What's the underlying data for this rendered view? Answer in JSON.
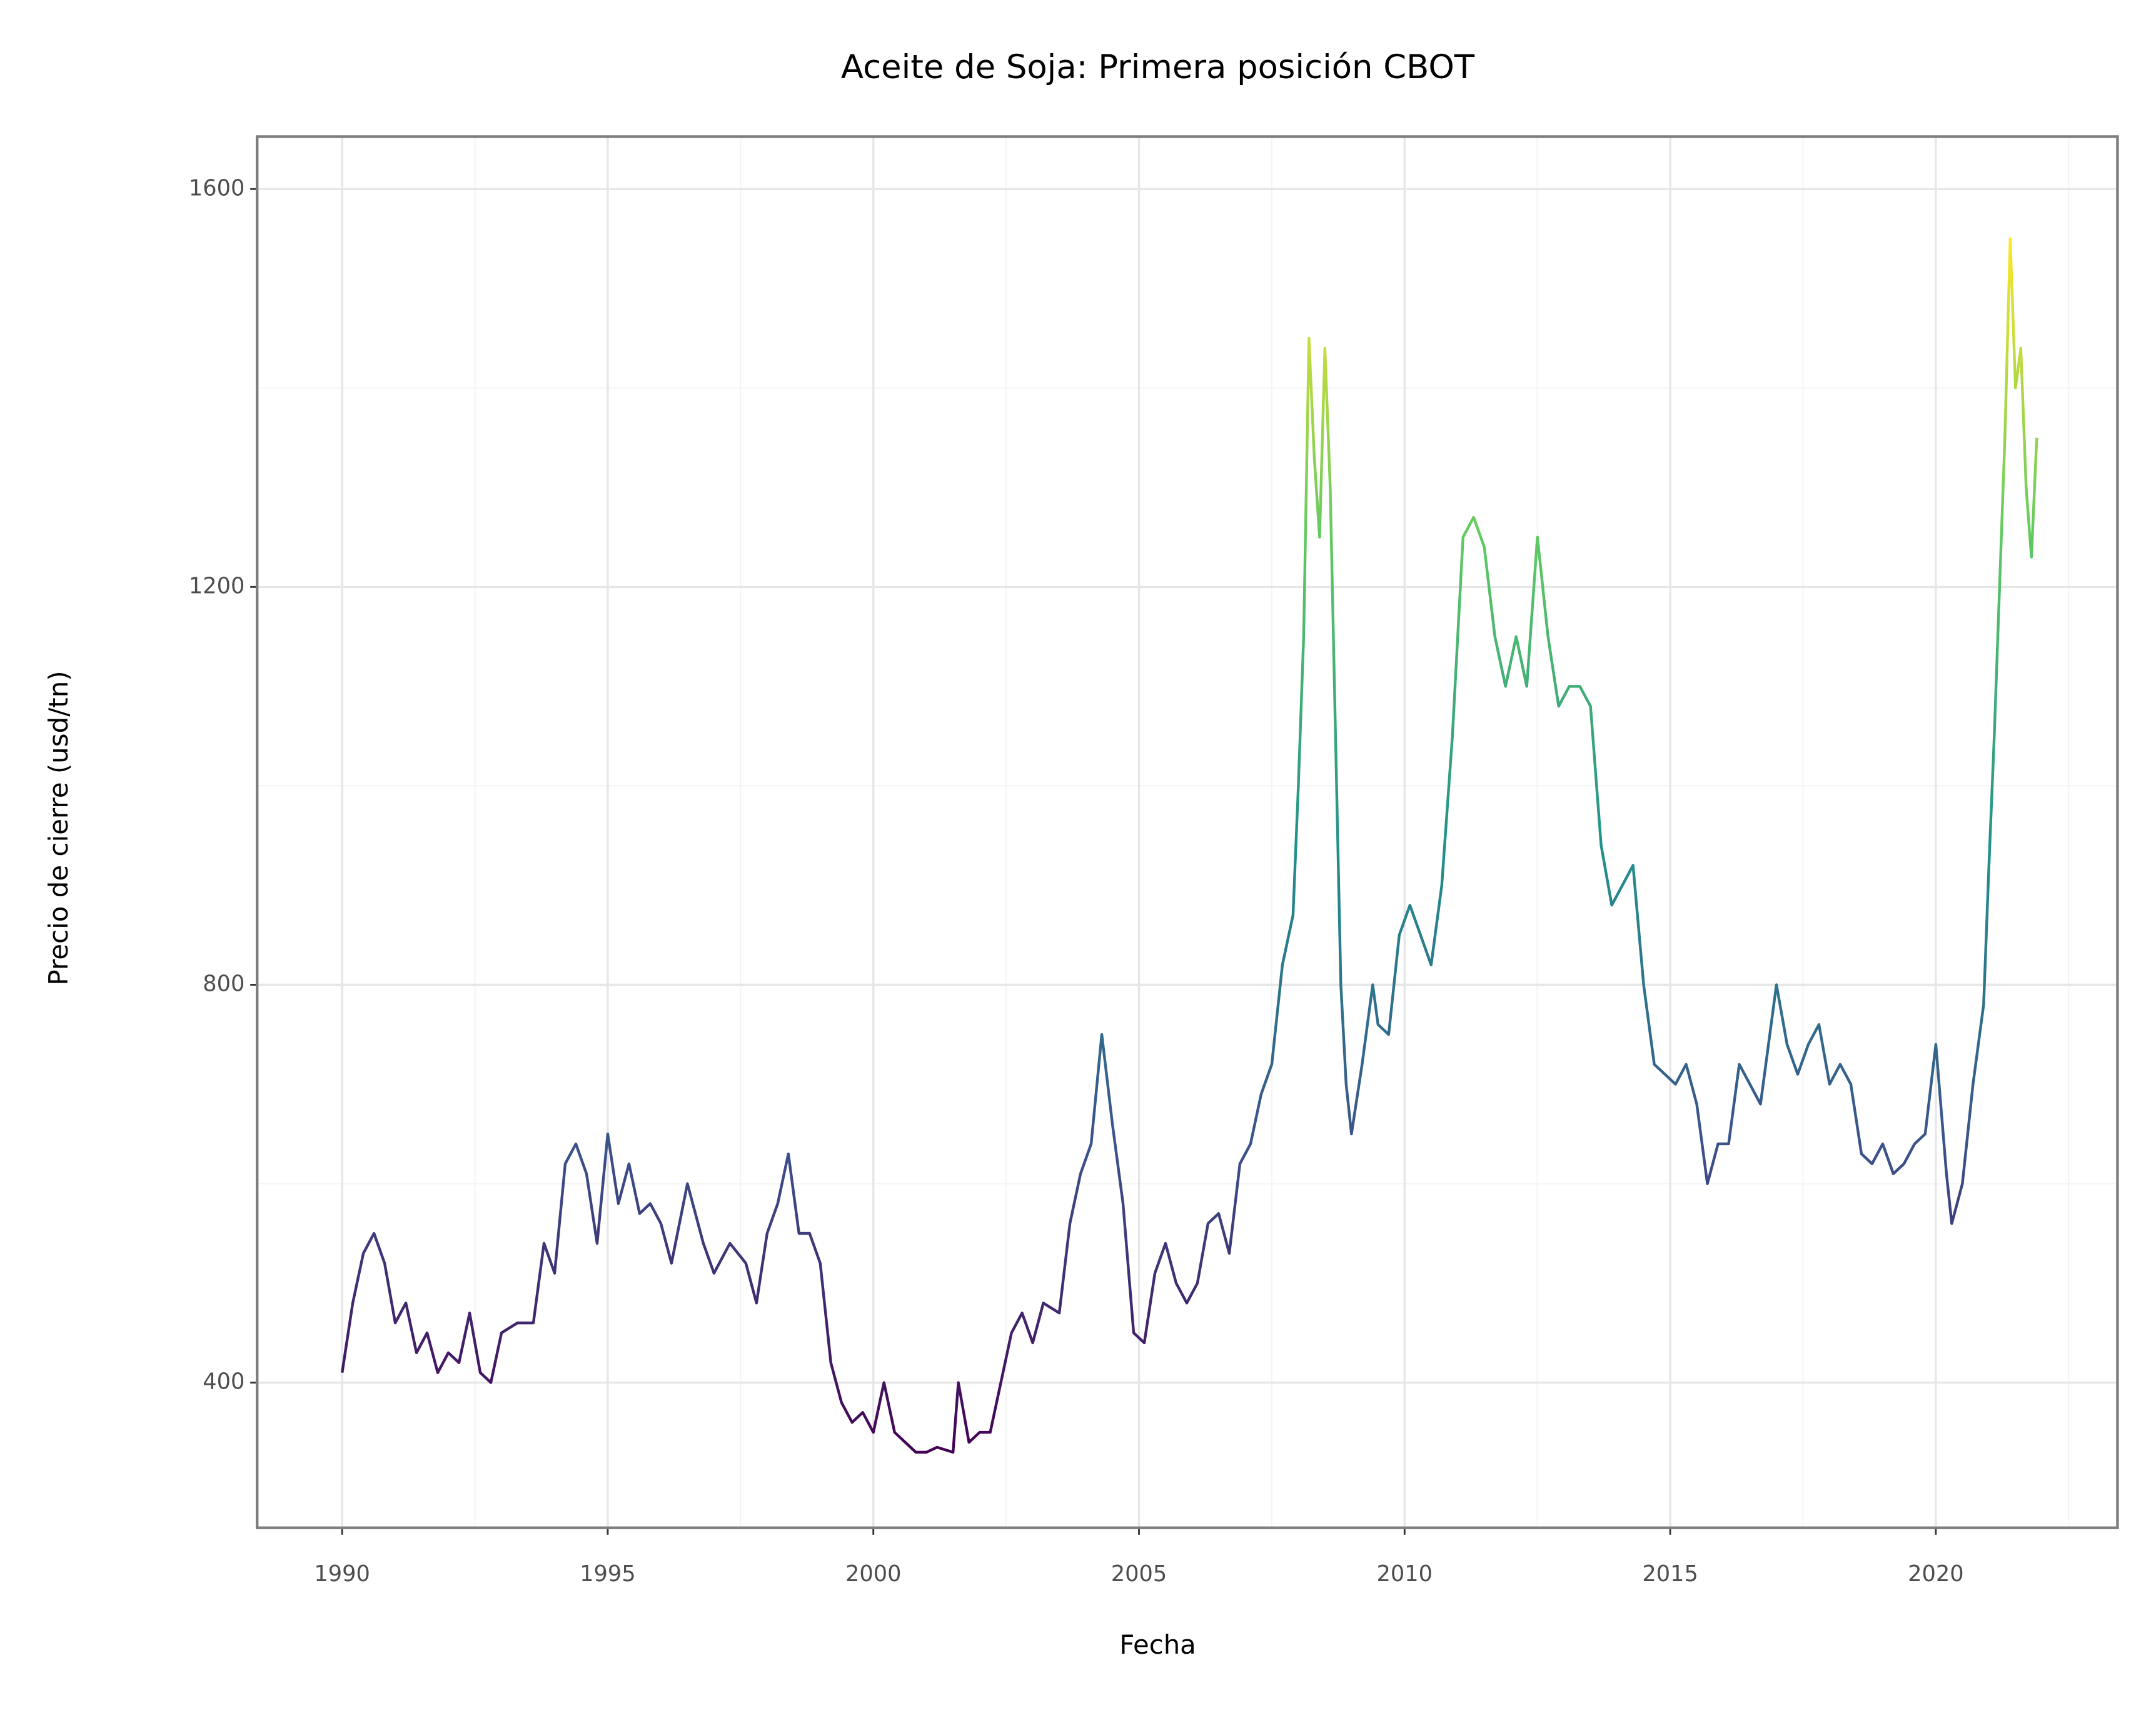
{
  "chart_data": {
    "type": "line",
    "title": "Aceite de Soja: Primera posición CBOT",
    "x_label": "Fecha",
    "y_label": "Precio de cierre (usd/tn)",
    "x": [
      1990.0,
      1990.2,
      1990.4,
      1990.6,
      1990.8,
      1991.0,
      1991.2,
      1991.4,
      1991.6,
      1991.8,
      1992.0,
      1992.2,
      1992.4,
      1992.6,
      1992.8,
      1993.0,
      1993.3,
      1993.6,
      1993.8,
      1994.0,
      1994.2,
      1994.4,
      1994.6,
      1994.8,
      1995.0,
      1995.2,
      1995.4,
      1995.6,
      1995.8,
      1996.0,
      1996.2,
      1996.5,
      1996.8,
      1997.0,
      1997.3,
      1997.6,
      1997.8,
      1998.0,
      1998.2,
      1998.4,
      1998.6,
      1998.8,
      1999.0,
      1999.2,
      1999.4,
      1999.6,
      1999.8,
      2000.0,
      2000.2,
      2000.4,
      2000.6,
      2000.8,
      2001.0,
      2001.2,
      2001.5,
      2001.6,
      2001.8,
      2002.0,
      2002.2,
      2002.4,
      2002.6,
      2002.8,
      2003.0,
      2003.2,
      2003.5,
      2003.7,
      2003.9,
      2004.1,
      2004.3,
      2004.5,
      2004.7,
      2004.9,
      2005.1,
      2005.3,
      2005.5,
      2005.7,
      2005.9,
      2006.1,
      2006.3,
      2006.5,
      2006.7,
      2006.9,
      2007.1,
      2007.3,
      2007.5,
      2007.7,
      2007.9,
      2008.0,
      2008.1,
      2008.2,
      2008.3,
      2008.4,
      2008.5,
      2008.6,
      2008.7,
      2008.8,
      2008.9,
      2009.0,
      2009.2,
      2009.4,
      2009.5,
      2009.7,
      2009.9,
      2010.1,
      2010.3,
      2010.5,
      2010.7,
      2010.9,
      2011.1,
      2011.3,
      2011.5,
      2011.7,
      2011.9,
      2012.1,
      2012.3,
      2012.5,
      2012.7,
      2012.9,
      2013.1,
      2013.3,
      2013.5,
      2013.7,
      2013.9,
      2014.1,
      2014.3,
      2014.5,
      2014.7,
      2014.9,
      2015.1,
      2015.3,
      2015.5,
      2015.7,
      2015.9,
      2016.1,
      2016.3,
      2016.5,
      2016.7,
      2016.9,
      2017.0,
      2017.2,
      2017.4,
      2017.6,
      2017.8,
      2018.0,
      2018.2,
      2018.4,
      2018.6,
      2018.8,
      2019.0,
      2019.2,
      2019.4,
      2019.6,
      2019.8,
      2020.0,
      2020.2,
      2020.3,
      2020.5,
      2020.7,
      2020.9,
      2021.0,
      2021.1,
      2021.2,
      2021.3,
      2021.4,
      2021.5,
      2021.6,
      2021.7,
      2021.8,
      2021.9
    ],
    "values": [
      410,
      480,
      530,
      550,
      520,
      460,
      480,
      430,
      450,
      410,
      430,
      420,
      470,
      410,
      400,
      450,
      460,
      460,
      540,
      510,
      620,
      640,
      610,
      540,
      650,
      580,
      620,
      570,
      580,
      560,
      520,
      600,
      540,
      510,
      540,
      520,
      480,
      550,
      580,
      630,
      550,
      550,
      520,
      420,
      380,
      360,
      370,
      350,
      400,
      350,
      340,
      330,
      330,
      335,
      330,
      400,
      340,
      350,
      350,
      400,
      450,
      470,
      440,
      480,
      470,
      560,
      610,
      640,
      750,
      660,
      580,
      450,
      440,
      510,
      540,
      500,
      480,
      500,
      560,
      570,
      530,
      620,
      640,
      690,
      720,
      820,
      870,
      1000,
      1150,
      1450,
      1330,
      1250,
      1440,
      1300,
      1050,
      800,
      700,
      650,
      720,
      800,
      760,
      750,
      850,
      880,
      850,
      820,
      900,
      1050,
      1250,
      1270,
      1240,
      1150,
      1100,
      1150,
      1100,
      1250,
      1150,
      1080,
      1100,
      1100,
      1080,
      940,
      880,
      900,
      920,
      800,
      720,
      710,
      700,
      720,
      680,
      600,
      640,
      640,
      720,
      700,
      680,
      760,
      800,
      740,
      710,
      740,
      760,
      700,
      720,
      700,
      630,
      620,
      640,
      610,
      620,
      640,
      650,
      740,
      610,
      560,
      600,
      700,
      780,
      920,
      1050,
      1200,
      1350,
      1550,
      1400,
      1440,
      1300,
      1230,
      1350
    ],
    "colormap": [
      "#440154",
      "#3b528b",
      "#21918c",
      "#5ec962",
      "#fde725"
    ],
    "xlim": [
      1988.4,
      2023.42
    ],
    "ylim": [
      254,
      1652.7
    ],
    "xticks": [
      1990,
      1995,
      2000,
      2005,
      2010,
      2015,
      2020
    ],
    "yticks": [
      400,
      800,
      1200,
      1600
    ],
    "grid": true
  }
}
